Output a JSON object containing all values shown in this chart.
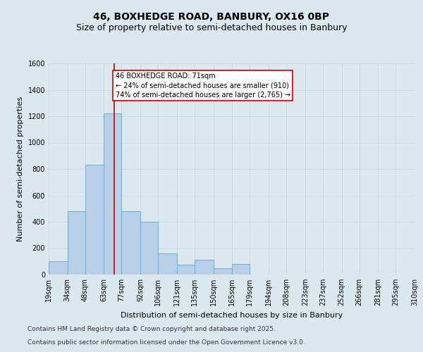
{
  "title1": "46, BOXHEDGE ROAD, BANBURY, OX16 0BP",
  "title2": "Size of property relative to semi-detached houses in Banbury",
  "xlabel": "Distribution of semi-detached houses by size in Banbury",
  "ylabel": "Number of semi-detached properties",
  "bin_edges": [
    19,
    34,
    48,
    63,
    77,
    92,
    106,
    121,
    135,
    150,
    165,
    179,
    194,
    208,
    223,
    237,
    252,
    266,
    281,
    295,
    310
  ],
  "bar_heights": [
    100,
    480,
    830,
    1220,
    480,
    400,
    160,
    75,
    110,
    50,
    80,
    0,
    0,
    0,
    0,
    0,
    0,
    0,
    0,
    0
  ],
  "bar_color": "#b8d0e8",
  "bar_edge_color": "#6baed6",
  "property_size": 71,
  "vline_color": "#cc0000",
  "annotation_text": "46 BOXHEDGE ROAD: 71sqm\n← 24% of semi-detached houses are smaller (910)\n74% of semi-detached houses are larger (2,765) →",
  "annotation_box_color": "#ffffff",
  "annotation_box_edge": "#cc0000",
  "ylim": [
    0,
    1600
  ],
  "yticks": [
    0,
    200,
    400,
    600,
    800,
    1000,
    1200,
    1400,
    1600
  ],
  "grid_color": "#c8d4e4",
  "background_color": "#dce8f0",
  "footer_line1": "Contains HM Land Registry data © Crown copyright and database right 2025.",
  "footer_line2": "Contains public sector information licensed under the Open Government Licence v3.0.",
  "title1_fontsize": 10,
  "title2_fontsize": 9,
  "tick_label_fontsize": 7,
  "axis_label_fontsize": 8,
  "footer_fontsize": 6.5
}
